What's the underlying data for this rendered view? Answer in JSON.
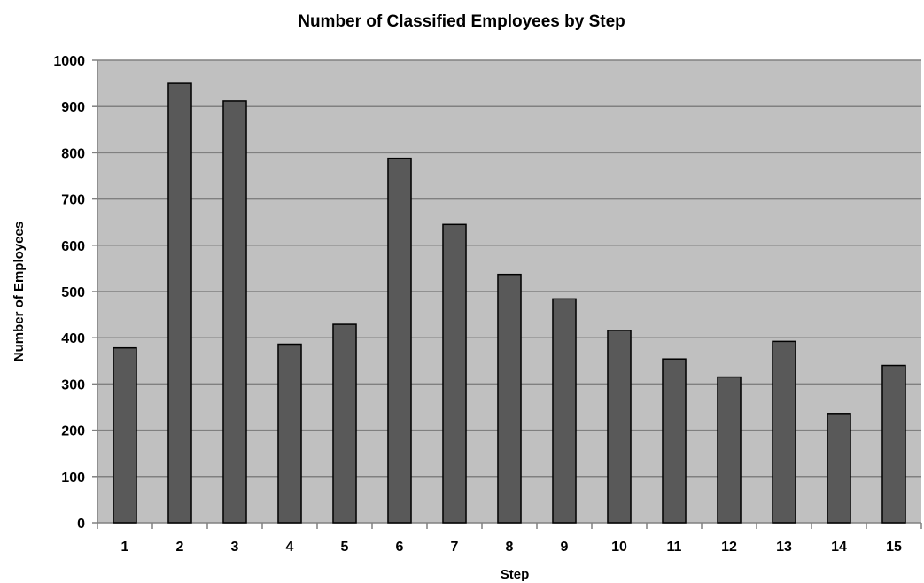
{
  "chart_data": {
    "type": "bar",
    "title": "Number of Classified Employees by Step",
    "xlabel": "Step",
    "ylabel": "Number of Employees",
    "categories": [
      "1",
      "2",
      "3",
      "4",
      "5",
      "6",
      "7",
      "8",
      "9",
      "10",
      "11",
      "12",
      "13",
      "14",
      "15"
    ],
    "values": [
      378,
      950,
      912,
      386,
      429,
      788,
      645,
      537,
      484,
      416,
      354,
      315,
      392,
      236,
      340
    ],
    "ylim": [
      0,
      1000
    ],
    "yticks": [
      0,
      100,
      200,
      300,
      400,
      500,
      600,
      700,
      800,
      900,
      1000
    ],
    "grid": true,
    "legend": "none",
    "colors": {
      "plot_background": "#c0c0c0",
      "bar_fill": "#595959",
      "bar_stroke": "#000000",
      "gridline": "#808080"
    }
  }
}
